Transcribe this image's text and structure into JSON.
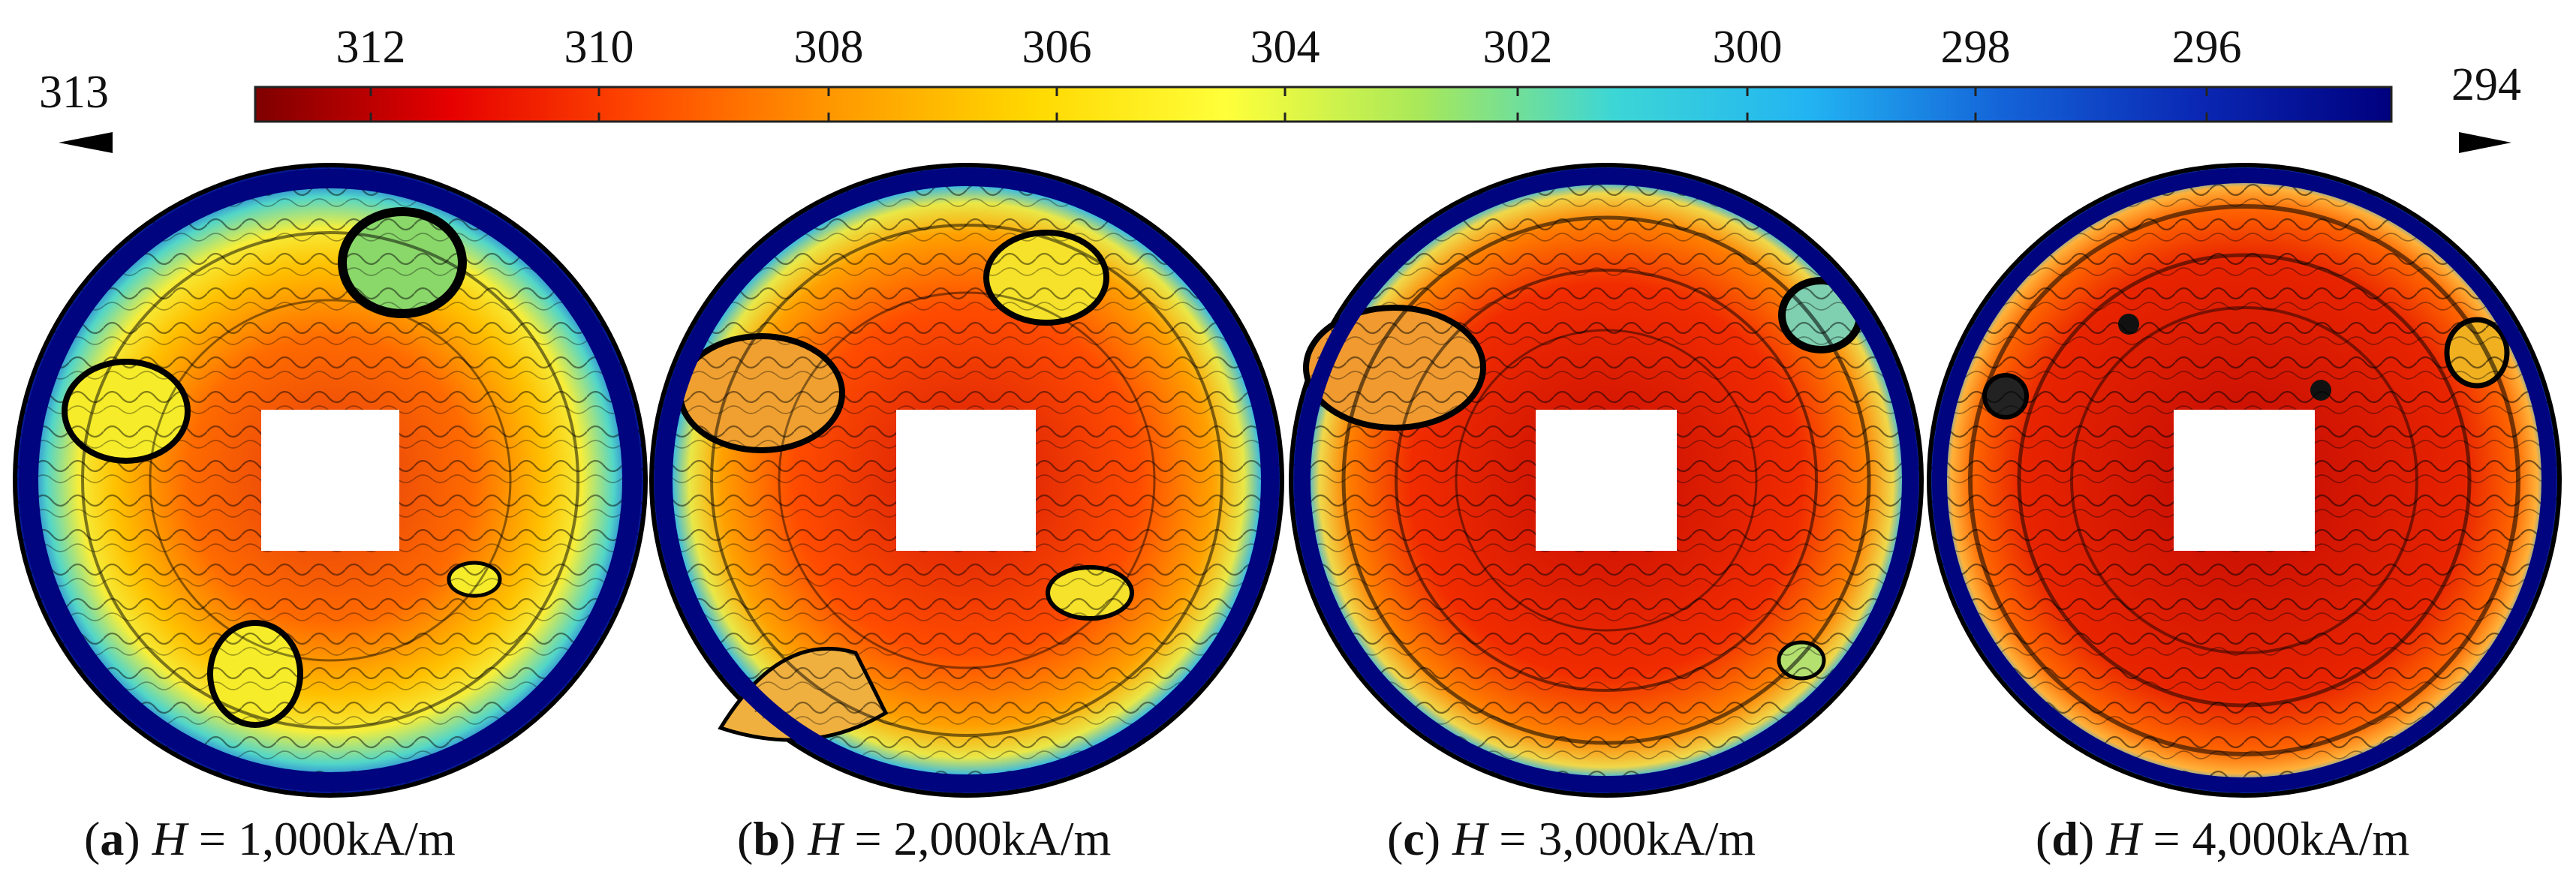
{
  "colorbar": {
    "ticks": [
      "312",
      "310",
      "308",
      "306",
      "304",
      "302",
      "300",
      "298",
      "296"
    ],
    "min_label": "313",
    "max_label": "294",
    "colors": [
      "#7f0000",
      "#e60000",
      "#ff4a00",
      "#ff9a00",
      "#ffd800",
      "#ffff3a",
      "#a8e85a",
      "#3cd6d6",
      "#22b4f2",
      "#1463d8",
      "#0a28b4",
      "#00007e"
    ]
  },
  "panels": [
    {
      "letter": "a",
      "var": "H",
      "eq": "=",
      "value": "1,000kA/m"
    },
    {
      "letter": "b",
      "var": "H",
      "eq": "=",
      "value": "2,000kA/m"
    },
    {
      "letter": "c",
      "var": "H",
      "eq": "=",
      "value": "3,000kA/m"
    },
    {
      "letter": "d",
      "var": "H",
      "eq": "=",
      "value": "4,000kA/m"
    }
  ]
}
